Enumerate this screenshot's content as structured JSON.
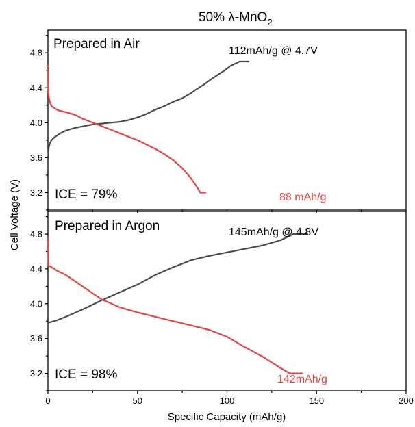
{
  "chart_data": {
    "type": "line",
    "title_main": "50% λ-MnO",
    "title_sub": "2",
    "xlabel": "Specific Capacity (mAh/g)",
    "ylabel": "Cell Voltage (V)",
    "xlim": [
      0,
      200
    ],
    "x_ticks": [
      "0",
      "50",
      "100",
      "150",
      "200"
    ],
    "colors": {
      "charge": "#4a4a4a",
      "discharge": "#e8433e"
    },
    "panels": [
      {
        "label": "Prepared in Air",
        "ylim": [
          3.0,
          5.06
        ],
        "y_ticks": [
          "3.2",
          "3.6",
          "4.0",
          "4.4",
          "4.8"
        ],
        "ice": "ICE = 79%",
        "charge_annotation": "112mAh/g @ 4.7V",
        "discharge_annotation": "88 mAh/g",
        "series": [
          {
            "role": "charge",
            "x": [
              0,
              0.5,
              1,
              2,
              4,
              7,
              10,
              15,
              20,
              25,
              30,
              35,
              40,
              45,
              50,
              55,
              60,
              65,
              70,
              75,
              80,
              82,
              85,
              88,
              90,
              92,
              95,
              98,
              100,
              102,
              105,
              107,
              108,
              110,
              112
            ],
            "y": [
              3.58,
              3.72,
              3.76,
              3.8,
              3.84,
              3.88,
              3.91,
              3.94,
              3.96,
              3.98,
              3.99,
              4.0,
              4.01,
              4.03,
              4.06,
              4.1,
              4.15,
              4.19,
              4.24,
              4.28,
              4.34,
              4.37,
              4.41,
              4.45,
              4.48,
              4.51,
              4.55,
              4.59,
              4.62,
              4.65,
              4.68,
              4.7,
              4.7,
              4.7,
              4.7
            ]
          },
          {
            "role": "discharge",
            "x": [
              0,
              0.2,
              0.5,
              1,
              2,
              4,
              6,
              8,
              10,
              12,
              15,
              20,
              25,
              30,
              35,
              40,
              45,
              50,
              55,
              60,
              65,
              70,
              75,
              78,
              80,
              82,
              84,
              85,
              86,
              87,
              88
            ],
            "y": [
              4.66,
              4.4,
              4.3,
              4.24,
              4.19,
              4.16,
              4.14,
              4.13,
              4.12,
              4.11,
              4.09,
              4.04,
              4.0,
              3.96,
              3.92,
              3.88,
              3.84,
              3.8,
              3.75,
              3.7,
              3.64,
              3.57,
              3.48,
              3.41,
              3.36,
              3.3,
              3.24,
              3.2,
              3.2,
              3.2,
              3.2
            ]
          }
        ]
      },
      {
        "label": "Prepared in Argon",
        "ylim": [
          3.0,
          5.06
        ],
        "y_ticks": [
          "3.2",
          "3.6",
          "4.0",
          "4.4",
          "4.8"
        ],
        "ice": "ICE = 98%",
        "charge_annotation": "145mAh/g @ 4.8V",
        "discharge_annotation": "142mAh/g",
        "series": [
          {
            "role": "charge",
            "x": [
              0,
              5,
              10,
              20,
              30,
              40,
              50,
              60,
              70,
              80,
              90,
              95,
              100,
              110,
              120,
              130,
              137,
              140,
              143,
              145
            ],
            "y": [
              3.78,
              3.81,
              3.85,
              3.94,
              4.04,
              4.13,
              4.22,
              4.33,
              4.42,
              4.5,
              4.55,
              4.57,
              4.59,
              4.63,
              4.67,
              4.73,
              4.8,
              4.8,
              4.8,
              4.8
            ]
          },
          {
            "role": "discharge",
            "x": [
              0,
              0.3,
              2,
              5,
              10,
              20,
              30,
              40,
              50,
              60,
              70,
              80,
              90,
              100,
              110,
              120,
              130,
              135,
              137,
              140,
              142
            ],
            "y": [
              4.75,
              4.44,
              4.42,
              4.38,
              4.33,
              4.19,
              4.05,
              3.96,
              3.9,
              3.85,
              3.8,
              3.75,
              3.7,
              3.62,
              3.5,
              3.39,
              3.26,
              3.2,
              3.2,
              3.2,
              3.2
            ]
          }
        ]
      }
    ]
  }
}
